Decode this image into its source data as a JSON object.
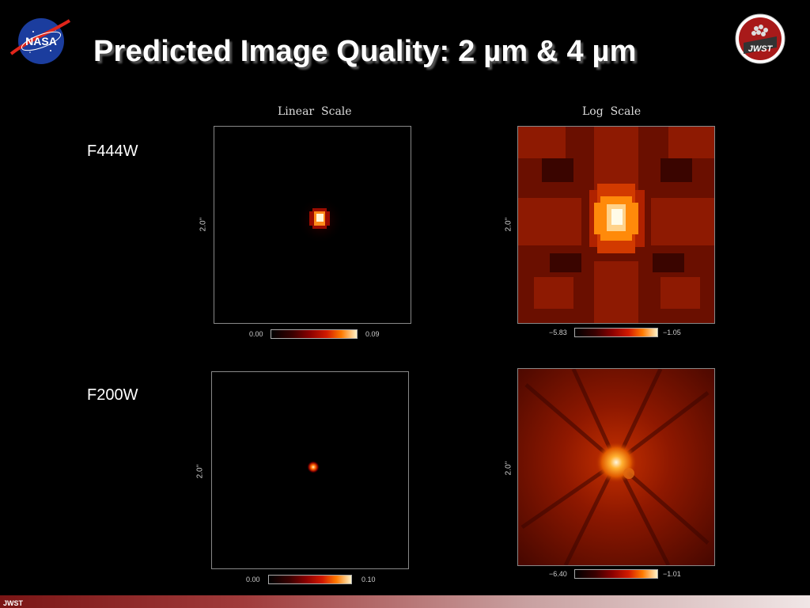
{
  "slide": {
    "title": "Predicted Image Quality: 2 µm & 4 µm",
    "columns": [
      "Linear  Scale",
      "Log  Scale"
    ],
    "rows": [
      {
        "label": "F444W",
        "linear": {
          "min": "0.00",
          "max": "0.09"
        },
        "log": {
          "min": "−5.83",
          "max": "−1.05"
        }
      },
      {
        "label": "F200W",
        "linear": {
          "min": "0.00",
          "max": "0.10"
        },
        "log": {
          "min": "−6.40",
          "max": "−1.01"
        }
      }
    ],
    "axis_label": "2.0''",
    "footer": "JWST"
  },
  "logos": {
    "nasa": {
      "icon": "nasa-meatball-logo",
      "text": "NASA"
    },
    "jwst": {
      "icon": "jwst-mission-logo",
      "text": "JWST"
    }
  },
  "colors": {
    "background": "#000000",
    "footer_dark": "#7a1515",
    "footer_light": "#f0e6e6"
  }
}
